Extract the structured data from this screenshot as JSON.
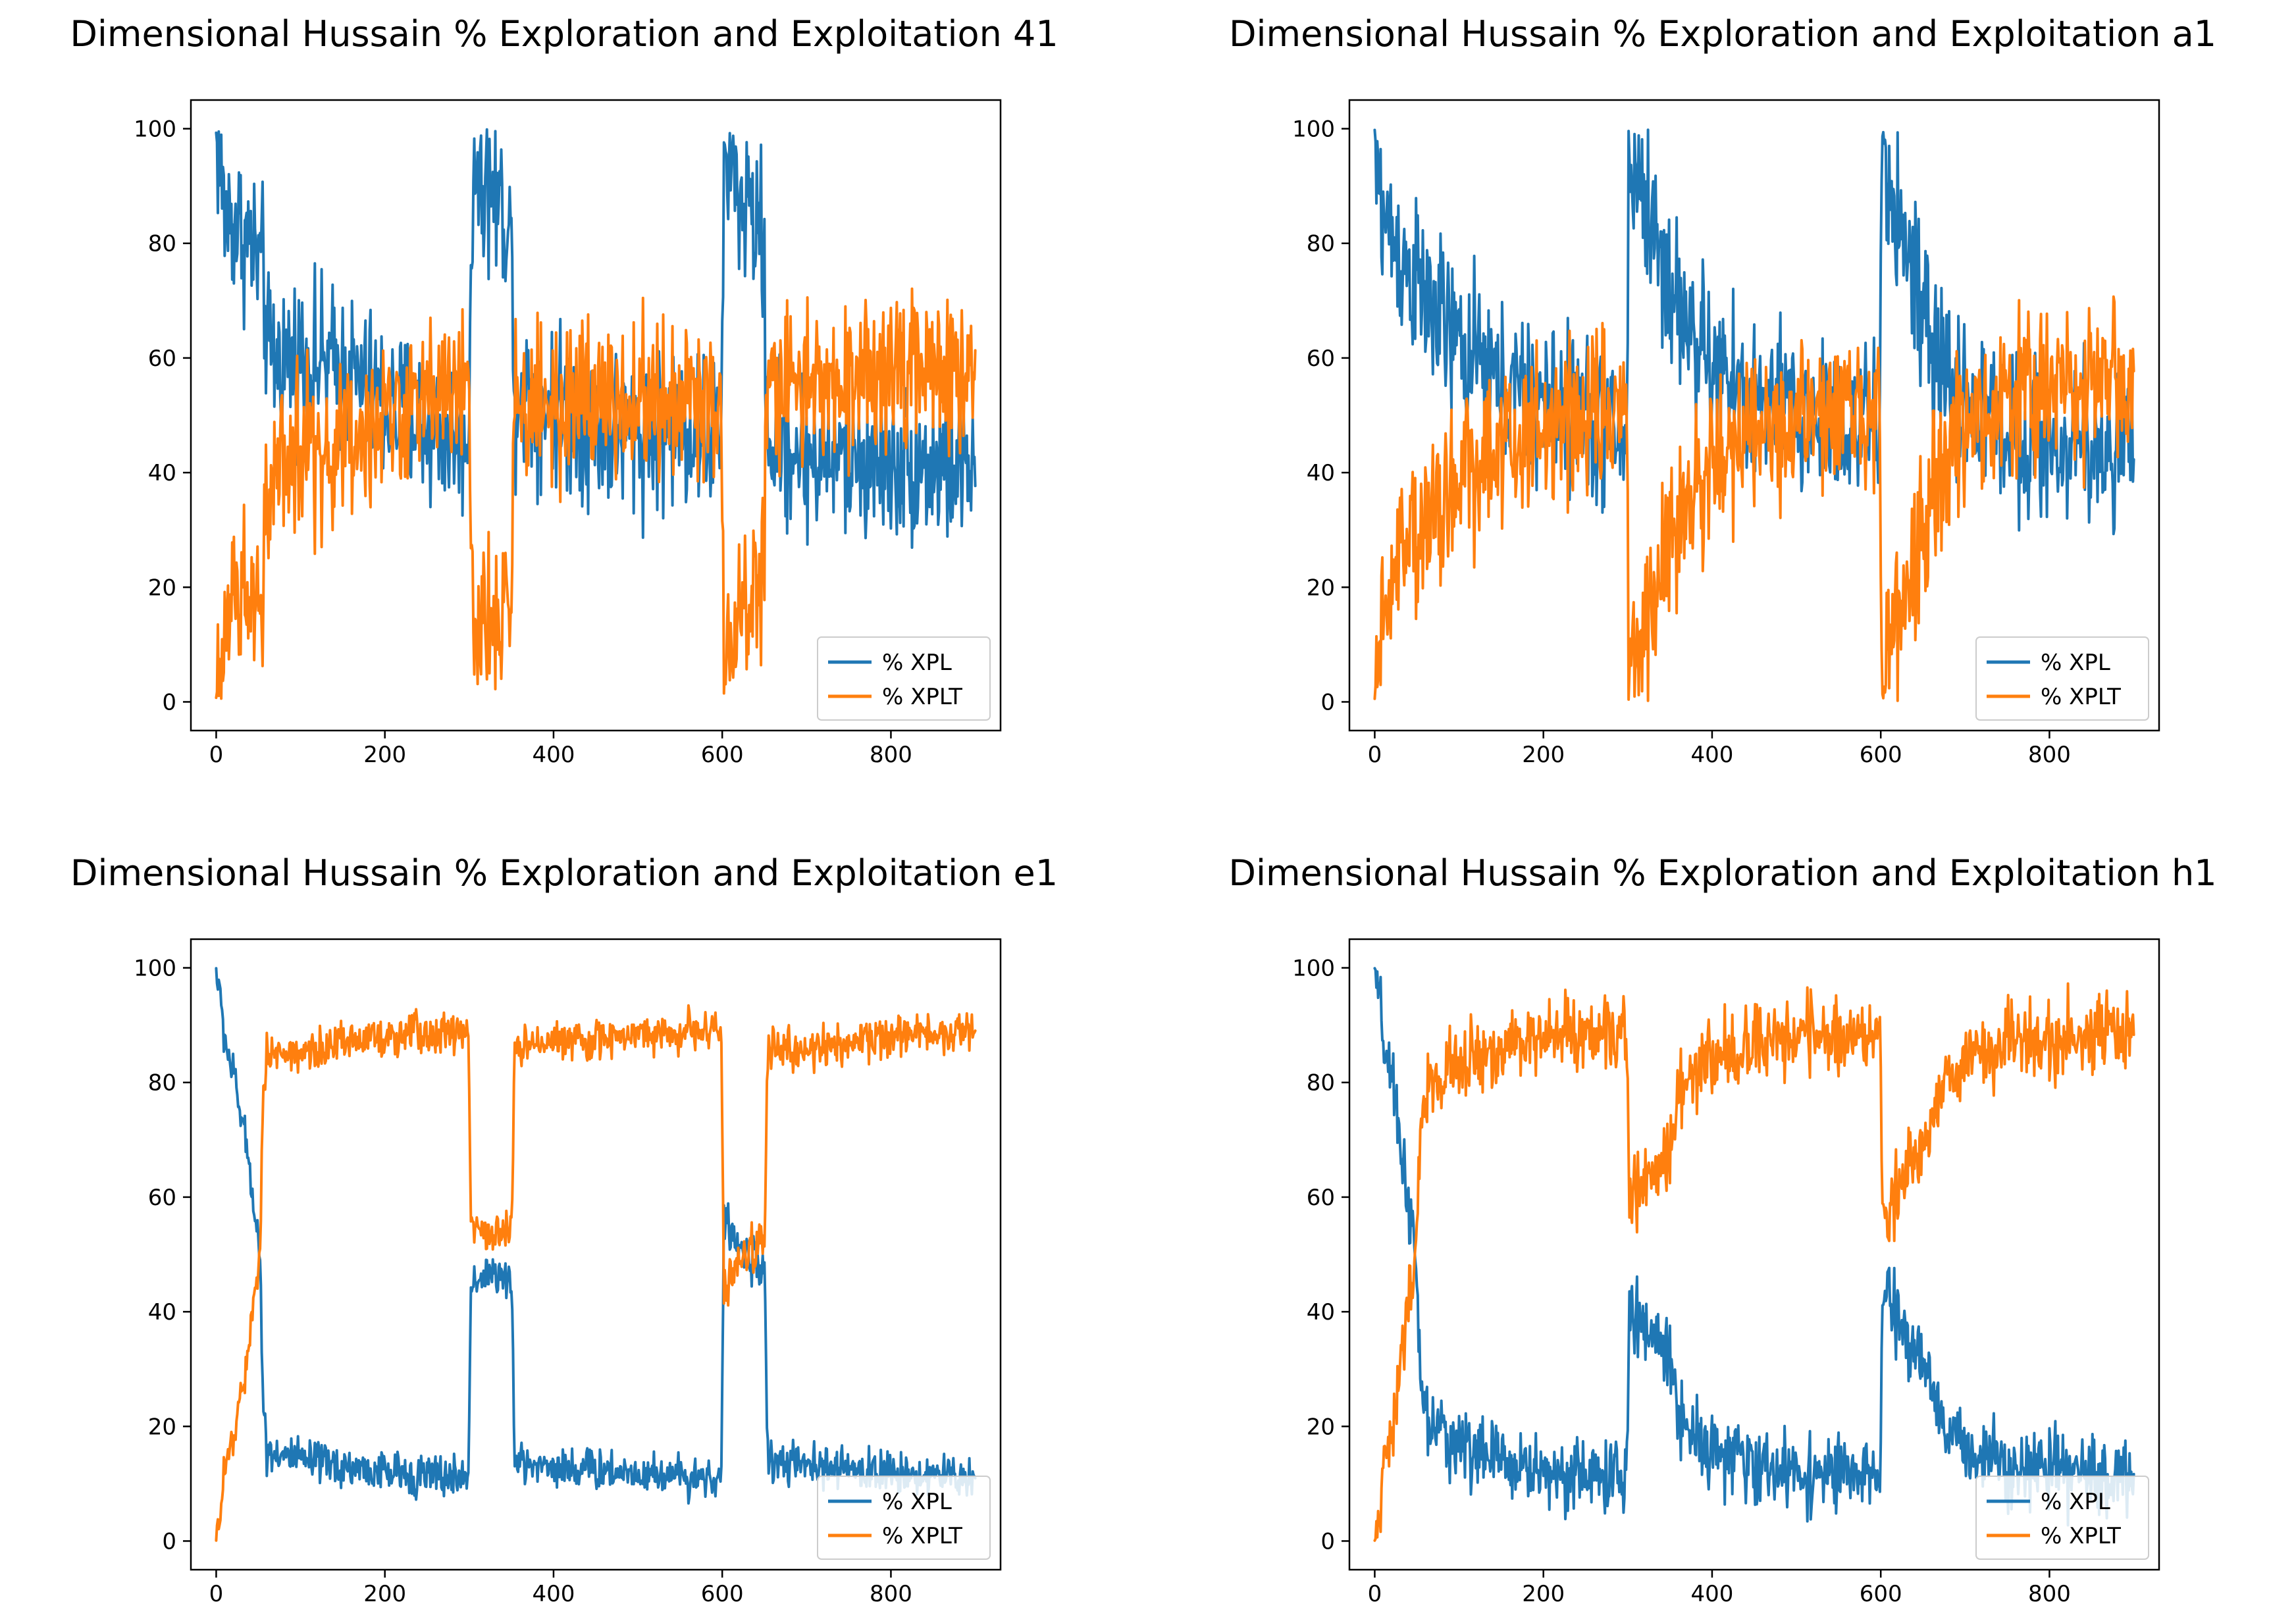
{
  "colors": {
    "xpl": "#1f77b4",
    "xplt": "#ff7f0e"
  },
  "chart_data": [
    {
      "id": "p41",
      "type": "line",
      "title": "Dimensional Hussain % Exploration and Exploitation 41",
      "xlabel": "",
      "ylabel": "",
      "xlim": [
        -30,
        930
      ],
      "ylim": [
        -5,
        105
      ],
      "xticks": [
        "0",
        "200",
        "400",
        "600",
        "800"
      ],
      "yticks": [
        "0",
        "20",
        "40",
        "60",
        "80",
        "100"
      ],
      "legend": {
        "position": "lower right",
        "entries": [
          "% XPL",
          "% XPLT"
        ]
      },
      "profile": "volatile",
      "noise": 7,
      "series": [
        {
          "name": "% XPL",
          "color": "#1f77b4",
          "anchors": [
            [
              0,
              100
            ],
            [
              5,
              92
            ],
            [
              10,
              85
            ],
            [
              20,
              84
            ],
            [
              40,
              80
            ],
            [
              55,
              75
            ],
            [
              62,
              60
            ],
            [
              100,
              60
            ],
            [
              150,
              58
            ],
            [
              200,
              52
            ],
            [
              250,
              48
            ],
            [
              299,
              46
            ],
            [
              300,
              58
            ],
            [
              305,
              95
            ],
            [
              320,
              90
            ],
            [
              345,
              85
            ],
            [
              350,
              82
            ],
            [
              352,
              55
            ],
            [
              400,
              52
            ],
            [
              450,
              48
            ],
            [
              500,
              47
            ],
            [
              550,
              48
            ],
            [
              599,
              46
            ],
            [
              600,
              58
            ],
            [
              602,
              98
            ],
            [
              620,
              88
            ],
            [
              645,
              82
            ],
            [
              650,
              80
            ],
            [
              652,
              46
            ],
            [
              700,
              43
            ],
            [
              800,
              42
            ],
            [
              900,
              41
            ]
          ]
        },
        {
          "name": "% XPLT",
          "color": "#ff7f0e",
          "anchors": [
            [
              0,
              0
            ],
            [
              5,
              5
            ],
            [
              10,
              12
            ],
            [
              20,
              18
            ],
            [
              40,
              18
            ],
            [
              55,
              22
            ],
            [
              62,
              40
            ],
            [
              100,
              42
            ],
            [
              150,
              45
            ],
            [
              200,
              50
            ],
            [
              250,
              53
            ],
            [
              299,
              55
            ],
            [
              300,
              45
            ],
            [
              305,
              8
            ],
            [
              320,
              14
            ],
            [
              345,
              14
            ],
            [
              350,
              18
            ],
            [
              352,
              48
            ],
            [
              400,
              50
            ],
            [
              450,
              52
            ],
            [
              500,
              52
            ],
            [
              550,
              52
            ],
            [
              599,
              52
            ],
            [
              600,
              40
            ],
            [
              602,
              5
            ],
            [
              620,
              15
            ],
            [
              645,
              22
            ],
            [
              650,
              22
            ],
            [
              652,
              55
            ],
            [
              700,
              55
            ],
            [
              800,
              57
            ],
            [
              900,
              58
            ]
          ]
        }
      ]
    },
    {
      "id": "pa1",
      "type": "line",
      "title": "Dimensional Hussain % Exploration and Exploitation a1",
      "xlabel": "",
      "ylabel": "",
      "xlim": [
        -30,
        930
      ],
      "ylim": [
        -5,
        105
      ],
      "xticks": [
        "0",
        "200",
        "400",
        "600",
        "800"
      ],
      "yticks": [
        "0",
        "20",
        "40",
        "60",
        "80",
        "100"
      ],
      "legend": {
        "position": "lower right",
        "entries": [
          "% XPL",
          "% XPLT"
        ]
      },
      "profile": "volatile",
      "noise": 7,
      "series": [
        {
          "name": "% XPL",
          "color": "#1f77b4",
          "anchors": [
            [
              0,
              98
            ],
            [
              10,
              85
            ],
            [
              30,
              78
            ],
            [
              60,
              70
            ],
            [
              100,
              62
            ],
            [
              150,
              55
            ],
            [
              200,
              52
            ],
            [
              250,
              50
            ],
            [
              295,
              46
            ],
            [
              299,
              45
            ],
            [
              301,
              95
            ],
            [
              320,
              88
            ],
            [
              350,
              72
            ],
            [
              400,
              58
            ],
            [
              450,
              52
            ],
            [
              500,
              50
            ],
            [
              550,
              49
            ],
            [
              595,
              48
            ],
            [
              599,
              47
            ],
            [
              601,
              95
            ],
            [
              630,
              80
            ],
            [
              660,
              60
            ],
            [
              700,
              52
            ],
            [
              750,
              48
            ],
            [
              800,
              45
            ],
            [
              900,
              44
            ]
          ]
        },
        {
          "name": "% XPLT",
          "color": "#ff7f0e",
          "anchors": [
            [
              0,
              0
            ],
            [
              10,
              15
            ],
            [
              30,
              25
            ],
            [
              60,
              32
            ],
            [
              100,
              40
            ],
            [
              150,
              45
            ],
            [
              200,
              48
            ],
            [
              250,
              50
            ],
            [
              295,
              52
            ],
            [
              299,
              54
            ],
            [
              301,
              5
            ],
            [
              320,
              12
            ],
            [
              350,
              28
            ],
            [
              400,
              42
            ],
            [
              450,
              48
            ],
            [
              500,
              50
            ],
            [
              550,
              50
            ],
            [
              595,
              52
            ],
            [
              599,
              53
            ],
            [
              601,
              5
            ],
            [
              630,
              18
            ],
            [
              660,
              38
            ],
            [
              700,
              48
            ],
            [
              750,
              52
            ],
            [
              800,
              55
            ],
            [
              900,
              56
            ]
          ]
        }
      ]
    },
    {
      "id": "pe1",
      "type": "line",
      "title": "Dimensional Hussain % Exploration and Exploitation e1",
      "xlabel": "",
      "ylabel": "",
      "xlim": [
        -30,
        930
      ],
      "ylim": [
        -5,
        105
      ],
      "xticks": [
        "0",
        "200",
        "400",
        "600",
        "800"
      ],
      "yticks": [
        "0",
        "20",
        "40",
        "60",
        "80",
        "100"
      ],
      "legend": {
        "position": "lower right",
        "entries": [
          "% XPL",
          "% XPLT"
        ]
      },
      "profile": "stable",
      "noise": 1.8,
      "series": [
        {
          "name": "% XPL",
          "color": "#1f77b4",
          "anchors": [
            [
              0,
              100
            ],
            [
              10,
              88
            ],
            [
              25,
              78
            ],
            [
              40,
              65
            ],
            [
              52,
              50
            ],
            [
              56,
              22
            ],
            [
              60,
              16
            ],
            [
              100,
              14
            ],
            [
              200,
              12
            ],
            [
              299,
              11
            ],
            [
              302,
              45
            ],
            [
              325,
              47
            ],
            [
              350,
              45
            ],
            [
              354,
              14
            ],
            [
              400,
              13
            ],
            [
              500,
              12
            ],
            [
              599,
              11
            ],
            [
              602,
              56
            ],
            [
              625,
              50
            ],
            [
              650,
              48
            ],
            [
              654,
              14
            ],
            [
              700,
              13
            ],
            [
              800,
              12
            ],
            [
              900,
              11
            ]
          ]
        },
        {
          "name": "% XPLT",
          "color": "#ff7f0e",
          "anchors": [
            [
              0,
              0
            ],
            [
              10,
              12
            ],
            [
              25,
              22
            ],
            [
              40,
              35
            ],
            [
              52,
              50
            ],
            [
              56,
              80
            ],
            [
              60,
              84
            ],
            [
              100,
              86
            ],
            [
              200,
              88
            ],
            [
              299,
              89
            ],
            [
              302,
              55
            ],
            [
              325,
              53
            ],
            [
              350,
              55
            ],
            [
              354,
              86
            ],
            [
              400,
              87
            ],
            [
              500,
              88
            ],
            [
              599,
              89
            ],
            [
              602,
              44
            ],
            [
              625,
              50
            ],
            [
              650,
              52
            ],
            [
              654,
              86
            ],
            [
              700,
              86
            ],
            [
              800,
              88
            ],
            [
              900,
              89
            ]
          ]
        }
      ]
    },
    {
      "id": "ph1",
      "type": "line",
      "title": "Dimensional Hussain % Exploration and Exploitation h1",
      "xlabel": "",
      "ylabel": "",
      "xlim": [
        -30,
        930
      ],
      "ylim": [
        -5,
        105
      ],
      "xticks": [
        "0",
        "200",
        "400",
        "600",
        "800"
      ],
      "yticks": [
        "0",
        "20",
        "40",
        "60",
        "80",
        "100"
      ],
      "legend": {
        "position": "lower right",
        "entries": [
          "% XPL",
          "% XPLT"
        ]
      },
      "profile": "medium",
      "noise": 3.2,
      "series": [
        {
          "name": "% XPL",
          "color": "#1f77b4",
          "anchors": [
            [
              0,
              100
            ],
            [
              10,
              88
            ],
            [
              25,
              75
            ],
            [
              40,
              60
            ],
            [
              50,
              45
            ],
            [
              55,
              25
            ],
            [
              65,
              20
            ],
            [
              100,
              17
            ],
            [
              150,
              14
            ],
            [
              200,
              12
            ],
            [
              299,
              11
            ],
            [
              302,
              40
            ],
            [
              330,
              36
            ],
            [
              352,
              32
            ],
            [
              360,
              22
            ],
            [
              400,
              16
            ],
            [
              450,
              13
            ],
            [
              500,
              12
            ],
            [
              599,
              11
            ],
            [
              602,
              43
            ],
            [
              630,
              36
            ],
            [
              655,
              30
            ],
            [
              665,
              22
            ],
            [
              700,
              16
            ],
            [
              800,
              12
            ],
            [
              900,
              11
            ]
          ]
        },
        {
          "name": "% XPLT",
          "color": "#ff7f0e",
          "anchors": [
            [
              0,
              0
            ],
            [
              10,
              12
            ],
            [
              25,
              25
            ],
            [
              40,
              40
            ],
            [
              50,
              55
            ],
            [
              55,
              75
            ],
            [
              65,
              80
            ],
            [
              100,
              83
            ],
            [
              150,
              86
            ],
            [
              200,
              88
            ],
            [
              299,
              89
            ],
            [
              302,
              60
            ],
            [
              330,
              64
            ],
            [
              352,
              68
            ],
            [
              360,
              78
            ],
            [
              400,
              84
            ],
            [
              450,
              87
            ],
            [
              500,
              88
            ],
            [
              599,
              89
            ],
            [
              602,
              57
            ],
            [
              630,
              64
            ],
            [
              655,
              70
            ],
            [
              665,
              78
            ],
            [
              700,
              84
            ],
            [
              800,
              88
            ],
            [
              900,
              89
            ]
          ]
        }
      ]
    }
  ]
}
